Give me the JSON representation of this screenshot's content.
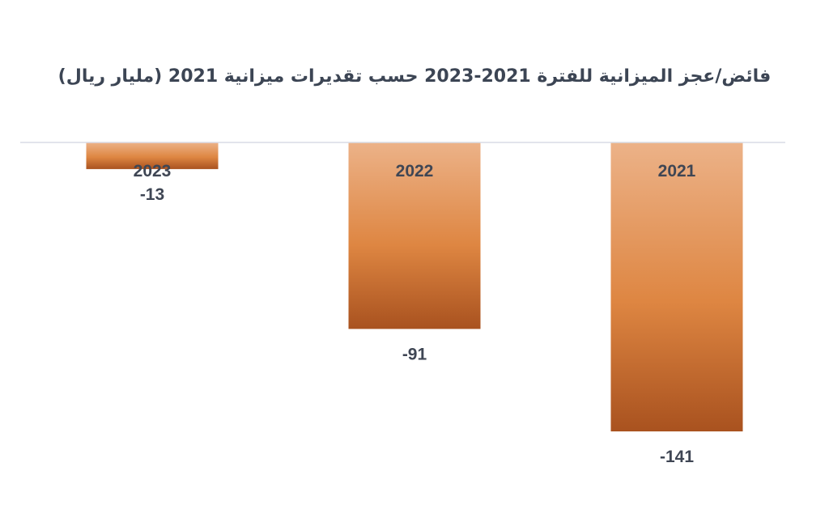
{
  "chart_data": {
    "type": "bar",
    "title": "فائض/عجز الميزانية للفترة 2021-2023 حسب تقديرات ميزانية 2021 (مليار ريال)",
    "categories": [
      "2023",
      "2022",
      "2021"
    ],
    "values": [
      -13,
      -91,
      -141
    ],
    "value_labels": [
      "-13",
      "-91",
      "-141"
    ],
    "ylim": [
      -160,
      0
    ],
    "grid": false,
    "legend": "none",
    "bar_color_light": "#ecb288",
    "bar_color_mid": "#de8642",
    "bar_color_dark": "#a9521f",
    "axis_color": "#d9dce6"
  }
}
